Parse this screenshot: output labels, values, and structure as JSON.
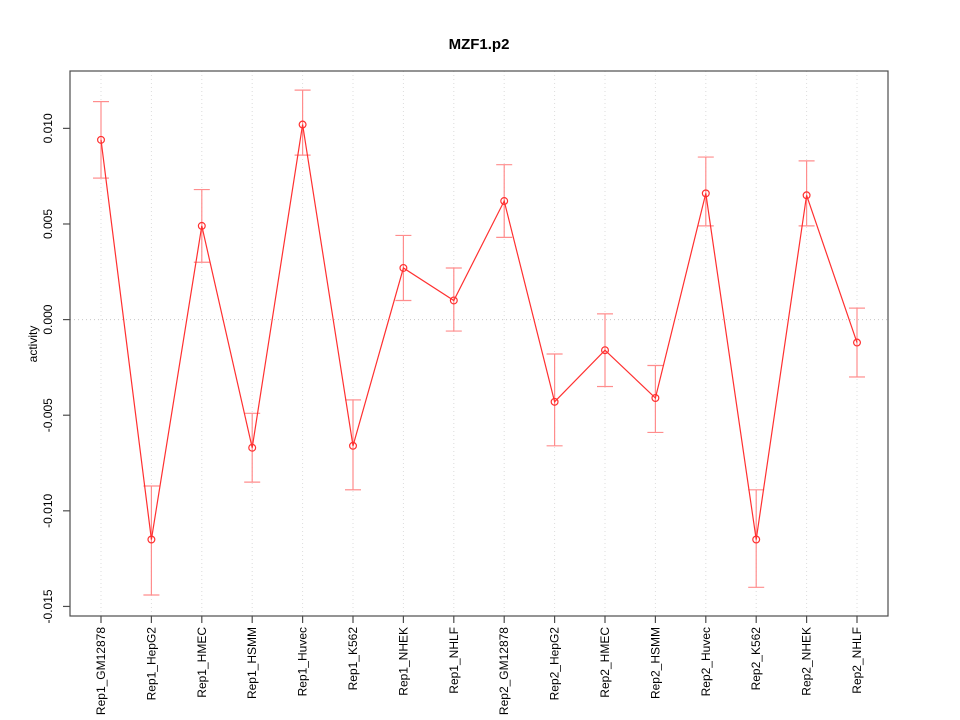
{
  "figure": {
    "title": "MZF1.p2"
  },
  "chart_data": {
    "type": "line",
    "title": "MZF1.p2",
    "xlabel": "",
    "ylabel": "activity",
    "legend_position": "none",
    "grid": {
      "vertical_dotted_per_category": true,
      "horizontal_dotted_zero_line": true
    },
    "categories": [
      "Rep1_GM12878",
      "Rep1_HepG2",
      "Rep1_HMEC",
      "Rep1_HSMM",
      "Rep1_Huvec",
      "Rep1_K562",
      "Rep1_NHEK",
      "Rep1_NHLF",
      "Rep2_GM12878",
      "Rep2_HepG2",
      "Rep2_HMEC",
      "Rep2_HSMM",
      "Rep2_Huvec",
      "Rep2_K562",
      "Rep2_NHEK",
      "Rep2_NHLF"
    ],
    "series": [
      {
        "name": "activity",
        "marker": "open-circle",
        "values": [
          0.0094,
          -0.0115,
          0.0049,
          -0.0067,
          0.0102,
          -0.0066,
          0.0027,
          0.001,
          0.0062,
          -0.0043,
          -0.0016,
          -0.0041,
          0.0066,
          -0.0115,
          0.0065,
          -0.0012
        ],
        "error_upper": [
          0.0114,
          -0.0087,
          0.0068,
          -0.0049,
          0.012,
          -0.0042,
          0.0044,
          0.0027,
          0.0081,
          -0.0018,
          0.0003,
          -0.0024,
          0.0085,
          -0.0089,
          0.0083,
          0.0006
        ],
        "error_lower": [
          0.0074,
          -0.0144,
          0.003,
          -0.0085,
          0.0086,
          -0.0089,
          0.001,
          -0.0006,
          0.0043,
          -0.0066,
          -0.0035,
          -0.0059,
          0.0049,
          -0.014,
          0.0049,
          -0.003
        ]
      }
    ],
    "ylim": [
      -0.0155,
      0.013
    ],
    "yticks": [
      0.01,
      0.005,
      0.0,
      -0.005,
      -0.01,
      -0.015
    ],
    "ytick_labels": [
      "0.010",
      "0.005",
      "0.000",
      "-0.005",
      "-0.010",
      "-0.015"
    ],
    "colors": {
      "line": "#ff3030",
      "error_bar": "#ff8d8d",
      "grid": "#dcdcdc",
      "zero_line": "#c8c8c8",
      "axis": "#4d4d4d",
      "text": "#000000"
    }
  }
}
